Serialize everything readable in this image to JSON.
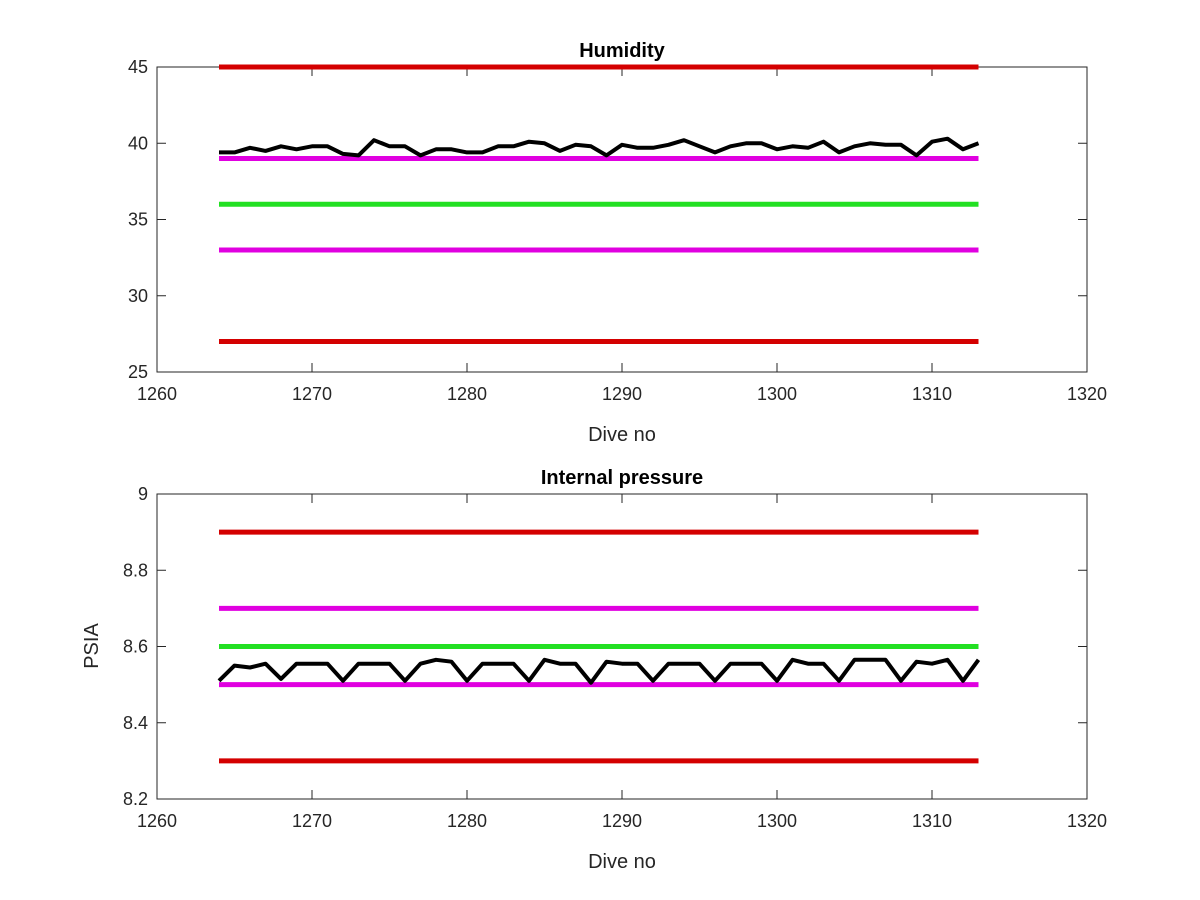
{
  "chart_data": [
    {
      "type": "line",
      "title": "Humidity",
      "xlabel": "Dive no",
      "ylabel": "",
      "xlim": [
        1260,
        1320
      ],
      "ylim": [
        25,
        45
      ],
      "xticks": [
        1260,
        1270,
        1280,
        1290,
        1300,
        1310,
        1320
      ],
      "xtick_labels": [
        "1260",
        "1270",
        "1280",
        "1290",
        "1300",
        "1310",
        "1320"
      ],
      "yticks": [
        25,
        30,
        35,
        40,
        45
      ],
      "ytick_labels": [
        "25",
        "30",
        "35",
        "40",
        "45"
      ],
      "grid": false,
      "limit_lines": [
        {
          "y": 45,
          "x": [
            1264,
            1313
          ],
          "color": "#d40000"
        },
        {
          "y": 39,
          "x": [
            1264,
            1313
          ],
          "color": "#e000e0"
        },
        {
          "y": 36,
          "x": [
            1264,
            1313
          ],
          "color": "#22e022"
        },
        {
          "y": 33,
          "x": [
            1264,
            1313
          ],
          "color": "#e000e0"
        },
        {
          "y": 27,
          "x": [
            1264,
            1313
          ],
          "color": "#d40000"
        }
      ],
      "series": [
        {
          "color": "#000000",
          "x": [
            1264,
            1265,
            1266,
            1267,
            1268,
            1269,
            1270,
            1271,
            1272,
            1273,
            1274,
            1275,
            1276,
            1277,
            1278,
            1279,
            1280,
            1281,
            1282,
            1283,
            1284,
            1285,
            1286,
            1287,
            1288,
            1289,
            1290,
            1291,
            1292,
            1293,
            1294,
            1295,
            1296,
            1297,
            1298,
            1299,
            1300,
            1301,
            1302,
            1303,
            1304,
            1305,
            1306,
            1307,
            1308,
            1309,
            1310,
            1311,
            1312,
            1313
          ],
          "values": [
            39.4,
            39.4,
            39.7,
            39.5,
            39.8,
            39.6,
            39.8,
            39.8,
            39.3,
            39.2,
            40.2,
            39.8,
            39.8,
            39.2,
            39.6,
            39.6,
            39.4,
            39.4,
            39.8,
            39.8,
            40.1,
            40.0,
            39.5,
            39.9,
            39.8,
            39.2,
            39.9,
            39.7,
            39.7,
            39.9,
            40.2,
            39.8,
            39.4,
            39.8,
            40.0,
            40.0,
            39.6,
            39.8,
            39.7,
            40.1,
            39.4,
            39.8,
            40.0,
            39.9,
            39.9,
            39.2,
            40.1,
            40.3,
            39.6,
            40.0
          ]
        }
      ]
    },
    {
      "type": "line",
      "title": "Internal pressure",
      "xlabel": "Dive no",
      "ylabel": "PSIA",
      "xlim": [
        1260,
        1320
      ],
      "ylim": [
        8.2,
        9.0
      ],
      "xticks": [
        1260,
        1270,
        1280,
        1290,
        1300,
        1310,
        1320
      ],
      "xtick_labels": [
        "1260",
        "1270",
        "1280",
        "1290",
        "1300",
        "1310",
        "1320"
      ],
      "yticks": [
        8.2,
        8.4,
        8.6,
        8.8,
        9.0
      ],
      "ytick_labels": [
        "8.2",
        "8.4",
        "8.6",
        "8.8",
        "9"
      ],
      "grid": false,
      "limit_lines": [
        {
          "y": 8.9,
          "x": [
            1264,
            1313
          ],
          "color": "#d40000"
        },
        {
          "y": 8.7,
          "x": [
            1264,
            1313
          ],
          "color": "#e000e0"
        },
        {
          "y": 8.6,
          "x": [
            1264,
            1313
          ],
          "color": "#22e022"
        },
        {
          "y": 8.5,
          "x": [
            1264,
            1313
          ],
          "color": "#e000e0"
        },
        {
          "y": 8.3,
          "x": [
            1264,
            1313
          ],
          "color": "#d40000"
        }
      ],
      "series": [
        {
          "color": "#000000",
          "x": [
            1264,
            1265,
            1266,
            1267,
            1268,
            1269,
            1270,
            1271,
            1272,
            1273,
            1274,
            1275,
            1276,
            1277,
            1278,
            1279,
            1280,
            1281,
            1282,
            1283,
            1284,
            1285,
            1286,
            1287,
            1288,
            1289,
            1290,
            1291,
            1292,
            1293,
            1294,
            1295,
            1296,
            1297,
            1298,
            1299,
            1300,
            1301,
            1302,
            1303,
            1304,
            1305,
            1306,
            1307,
            1308,
            1309,
            1310,
            1311,
            1312,
            1313
          ],
          "values": [
            8.51,
            8.55,
            8.545,
            8.555,
            8.515,
            8.555,
            8.555,
            8.555,
            8.51,
            8.555,
            8.555,
            8.555,
            8.51,
            8.555,
            8.565,
            8.56,
            8.51,
            8.555,
            8.555,
            8.555,
            8.51,
            8.565,
            8.555,
            8.555,
            8.505,
            8.56,
            8.555,
            8.555,
            8.51,
            8.555,
            8.555,
            8.555,
            8.51,
            8.555,
            8.555,
            8.555,
            8.51,
            8.565,
            8.555,
            8.555,
            8.51,
            8.565,
            8.565,
            8.565,
            8.51,
            8.56,
            8.555,
            8.565,
            8.51,
            8.565
          ]
        }
      ]
    }
  ]
}
